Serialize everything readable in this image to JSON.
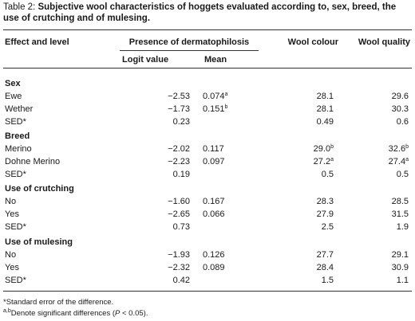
{
  "caption": {
    "label": "Table 2: ",
    "title": "Subjective wool characteristics of hoggets evaluated according to, sex, breed, the use of crutching and of mulesing."
  },
  "headers": {
    "effect": "Effect and level",
    "presence": "Presence of dermatophilosis",
    "wool_colour": "Wool colour",
    "wool_quality": "Wool quality",
    "logit": "Logit value",
    "mean": "Mean"
  },
  "groups": [
    {
      "name": "Sex",
      "rows": [
        {
          "level": "Ewe",
          "logit": "−2.53",
          "mean": "0.074",
          "mean_sup": "a",
          "colour": "28.1",
          "colour_sup": "",
          "quality": "29.6",
          "quality_sup": ""
        },
        {
          "level": "Wether",
          "logit": "−1.73",
          "mean": "0.151",
          "mean_sup": "b",
          "colour": "28.1",
          "colour_sup": "",
          "quality": "30.3",
          "quality_sup": ""
        },
        {
          "level": "SED*",
          "logit": "0.23",
          "mean": "",
          "mean_sup": "",
          "colour": "0.49",
          "colour_sup": "",
          "quality": "0.6",
          "quality_sup": ""
        }
      ]
    },
    {
      "name": "Breed",
      "rows": [
        {
          "level": "Merino",
          "logit": "−2.02",
          "mean": "0.117",
          "mean_sup": "",
          "colour": "29.0",
          "colour_sup": "b",
          "quality": "32.6",
          "quality_sup": "b"
        },
        {
          "level": "Dohne Merino",
          "logit": "−2.23",
          "mean": "0.097",
          "mean_sup": "",
          "colour": "27.2",
          "colour_sup": "a",
          "quality": "27.4",
          "quality_sup": "a"
        },
        {
          "level": "SED*",
          "logit": "0.19",
          "mean": "",
          "mean_sup": "",
          "colour": "0.5",
          "colour_sup": "",
          "quality": "0.5",
          "quality_sup": ""
        }
      ]
    },
    {
      "name": "Use of crutching",
      "rows": [
        {
          "level": "No",
          "logit": "−1.60",
          "mean": "0.167",
          "mean_sup": "",
          "colour": "28.3",
          "colour_sup": "",
          "quality": "28.5",
          "quality_sup": ""
        },
        {
          "level": "Yes",
          "logit": "−2.65",
          "mean": "0.066",
          "mean_sup": "",
          "colour": "27.9",
          "colour_sup": "",
          "quality": "31.5",
          "quality_sup": ""
        },
        {
          "level": "SED*",
          "logit": "0.73",
          "mean": "",
          "mean_sup": "",
          "colour": "2.5",
          "colour_sup": "",
          "quality": "1.9",
          "quality_sup": ""
        }
      ]
    },
    {
      "name": "Use of mulesing",
      "rows": [
        {
          "level": "No",
          "logit": "−1.93",
          "mean": "0.126",
          "mean_sup": "",
          "colour": "27.7",
          "colour_sup": "",
          "quality": "29.1",
          "quality_sup": ""
        },
        {
          "level": "Yes",
          "logit": "−2.32",
          "mean": "0.089",
          "mean_sup": "",
          "colour": "28.4",
          "colour_sup": "",
          "quality": "30.9",
          "quality_sup": ""
        },
        {
          "level": "SED*",
          "logit": "0.42",
          "mean": "",
          "mean_sup": "",
          "colour": "1.5",
          "colour_sup": "",
          "quality": "1.1",
          "quality_sup": ""
        }
      ]
    }
  ],
  "footnotes": {
    "sed": "*Standard error of the difference.",
    "sig_sup": "a,b",
    "sig_text": "Denote significant differences (",
    "sig_p": "P",
    "sig_tail": " < 0.05)."
  }
}
